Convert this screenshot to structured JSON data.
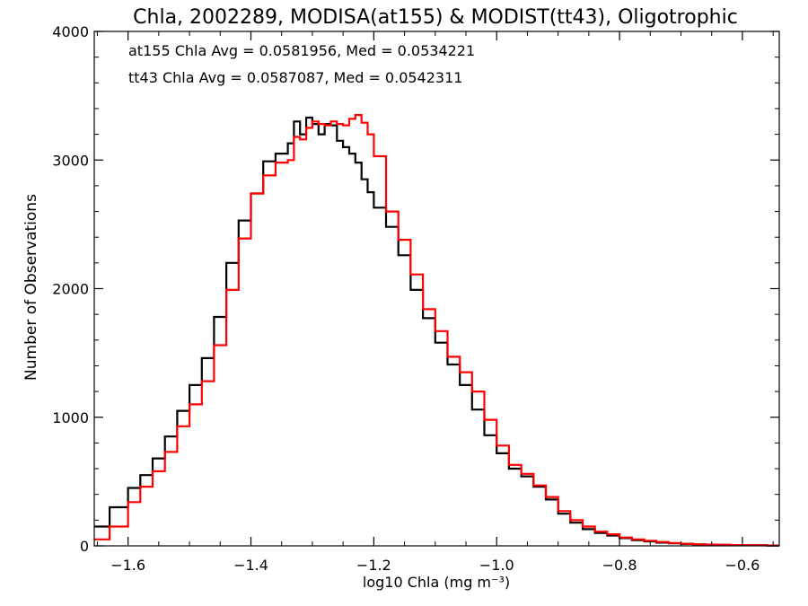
{
  "chart_data": {
    "type": "line",
    "title": "Chla, 2002289, MODISA(at155) & MODIST(tt43), Oligotrophic",
    "xlabel": "log10 Chla (mg m⁻³)",
    "ylabel": "Number of Observations",
    "xlim": [
      -1.655,
      -0.54
    ],
    "ylim": [
      0,
      4000
    ],
    "xticks": [
      -1.6,
      -1.4,
      -1.2,
      -1.0,
      -0.8,
      -0.6
    ],
    "xtick_labels": [
      "−1.6",
      "−1.4",
      "−1.2",
      "−1.0",
      "−0.8",
      "−0.6"
    ],
    "yticks": [
      0,
      1000,
      2000,
      3000,
      4000
    ],
    "ytick_labels": [
      "0",
      "1000",
      "2000",
      "3000",
      "4000"
    ],
    "grid": false,
    "annotations": [
      {
        "text": "at155 Chla Avg = 0.0581956, Med = 0.0534221",
        "color": "#000000"
      },
      {
        "text": "tt43 Chla Avg = 0.0587087, Med = 0.0542311",
        "color": "#ff0000"
      }
    ],
    "series": [
      {
        "color": "#000000",
        "x": [
          -1.655,
          -1.63,
          -1.6,
          -1.58,
          -1.56,
          -1.54,
          -1.52,
          -1.5,
          -1.48,
          -1.46,
          -1.44,
          -1.42,
          -1.4,
          -1.38,
          -1.36,
          -1.34,
          -1.33,
          -1.32,
          -1.31,
          -1.3,
          -1.29,
          -1.28,
          -1.27,
          -1.26,
          -1.25,
          -1.24,
          -1.23,
          -1.22,
          -1.21,
          -1.2,
          -1.18,
          -1.16,
          -1.14,
          -1.12,
          -1.1,
          -1.08,
          -1.06,
          -1.04,
          -1.02,
          -1.0,
          -0.98,
          -0.96,
          -0.94,
          -0.92,
          -0.9,
          -0.88,
          -0.86,
          -0.84,
          -0.82,
          -0.8,
          -0.78,
          -0.76,
          -0.74,
          -0.72,
          -0.7,
          -0.68,
          -0.66,
          -0.64,
          -0.62,
          -0.6,
          -0.58,
          -0.56,
          -0.54
        ],
        "y": [
          150,
          300,
          450,
          550,
          680,
          850,
          1050,
          1250,
          1460,
          1780,
          2200,
          2530,
          2740,
          2990,
          3050,
          3130,
          3300,
          3200,
          3330,
          3280,
          3200,
          3280,
          3270,
          3150,
          3100,
          3050,
          2980,
          2850,
          2750,
          2630,
          2480,
          2260,
          1990,
          1770,
          1580,
          1410,
          1250,
          1060,
          860,
          720,
          600,
          540,
          460,
          360,
          250,
          180,
          130,
          100,
          80,
          60,
          45,
          35,
          25,
          20,
          15,
          12,
          10,
          8,
          6,
          5,
          4,
          3,
          3
        ]
      },
      {
        "color": "#ff0000",
        "x": [
          -1.655,
          -1.63,
          -1.6,
          -1.58,
          -1.56,
          -1.54,
          -1.52,
          -1.5,
          -1.48,
          -1.46,
          -1.44,
          -1.42,
          -1.4,
          -1.38,
          -1.36,
          -1.34,
          -1.33,
          -1.32,
          -1.31,
          -1.3,
          -1.29,
          -1.28,
          -1.27,
          -1.26,
          -1.25,
          -1.24,
          -1.23,
          -1.22,
          -1.21,
          -1.2,
          -1.18,
          -1.16,
          -1.14,
          -1.12,
          -1.1,
          -1.08,
          -1.06,
          -1.04,
          -1.02,
          -1.0,
          -0.98,
          -0.96,
          -0.94,
          -0.92,
          -0.9,
          -0.88,
          -0.86,
          -0.84,
          -0.82,
          -0.8,
          -0.78,
          -0.76,
          -0.74,
          -0.72,
          -0.7,
          -0.68,
          -0.66,
          -0.64,
          -0.62,
          -0.6,
          -0.58,
          -0.56,
          -0.54
        ],
        "y": [
          50,
          150,
          340,
          460,
          580,
          730,
          930,
          1100,
          1280,
          1560,
          1990,
          2390,
          2740,
          2880,
          2980,
          3000,
          3180,
          3160,
          3250,
          3300,
          3280,
          3270,
          3300,
          3280,
          3270,
          3320,
          3350,
          3290,
          3200,
          3030,
          2600,
          2380,
          2110,
          1840,
          1670,
          1470,
          1350,
          1200,
          980,
          780,
          630,
          560,
          470,
          380,
          270,
          200,
          150,
          110,
          90,
          65,
          50,
          40,
          30,
          22,
          16,
          12,
          10,
          8,
          6,
          5,
          4,
          3,
          3
        ]
      }
    ]
  }
}
